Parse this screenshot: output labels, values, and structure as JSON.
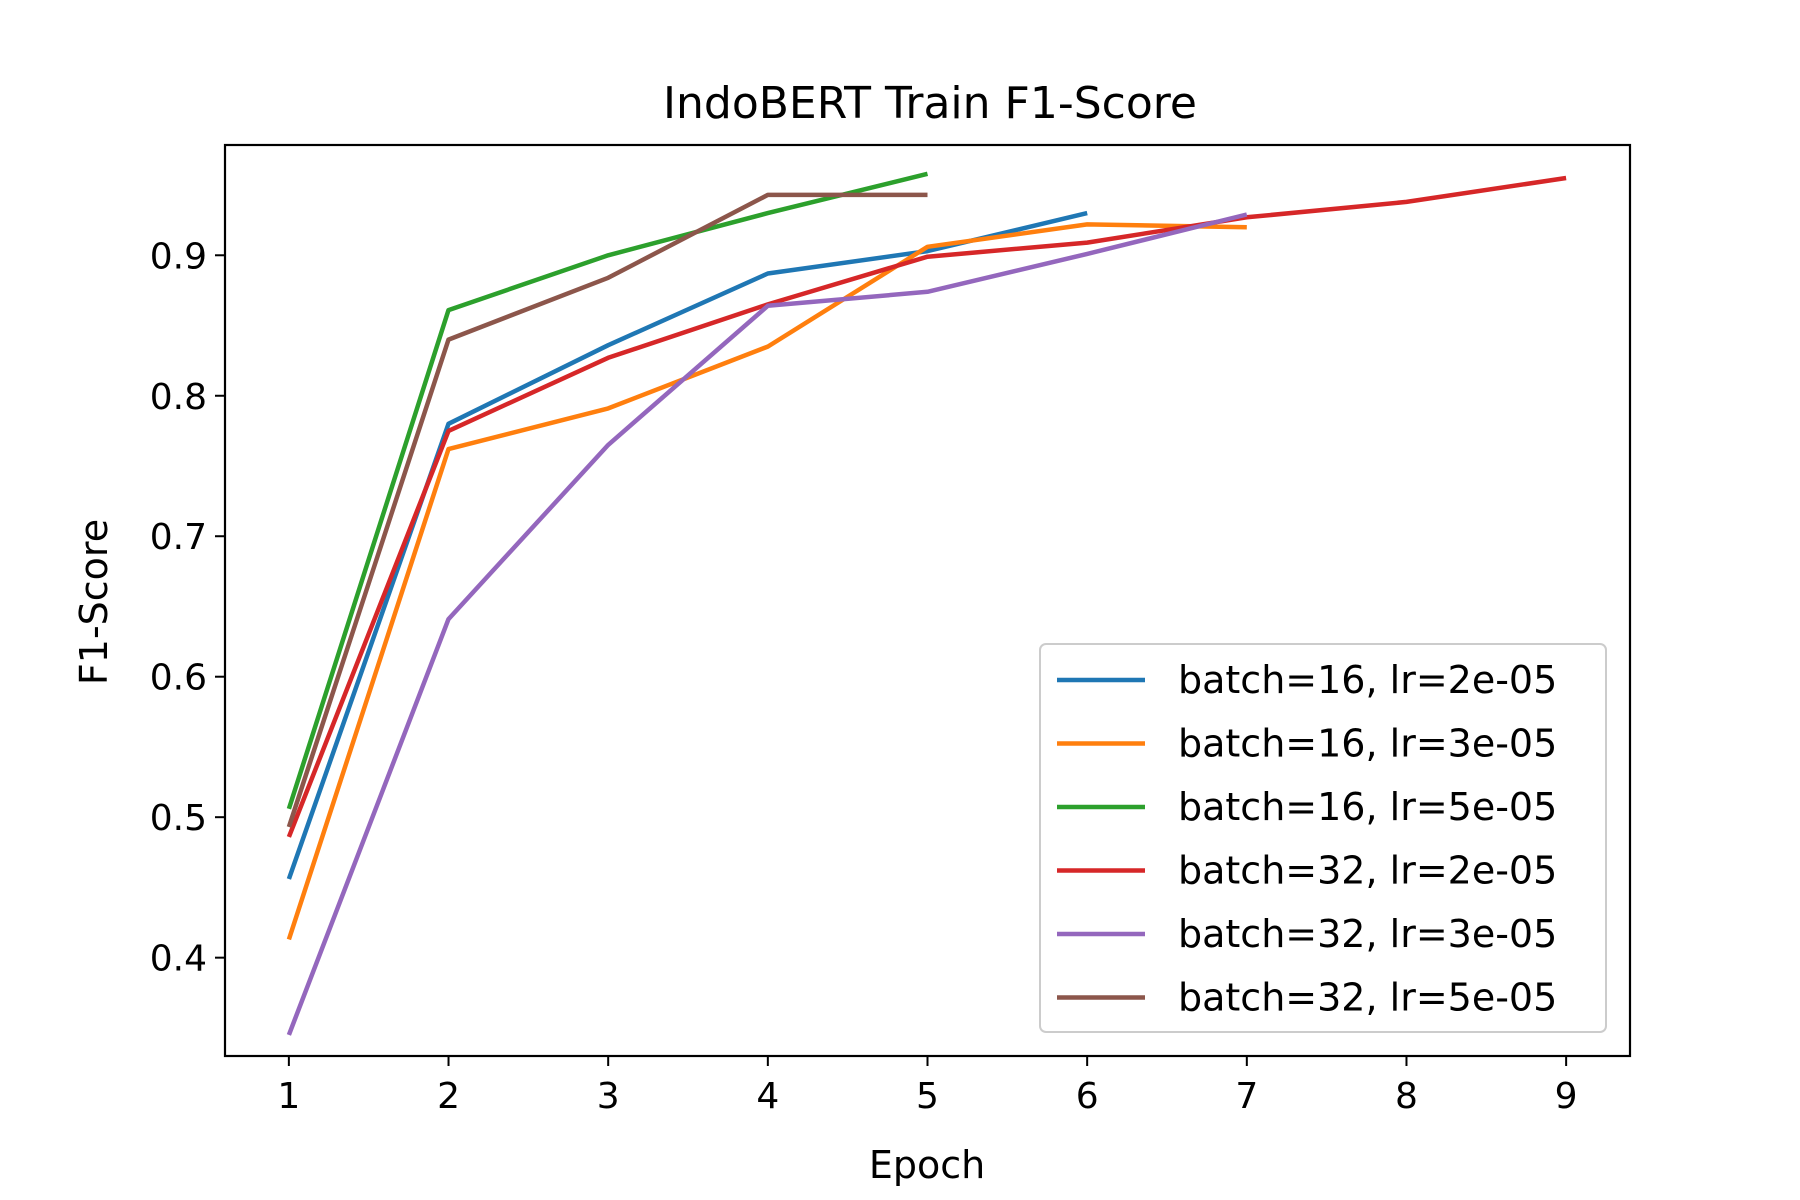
{
  "chart_data": {
    "type": "line",
    "title": "IndoBERT Train F1-Score",
    "xlabel": "Epoch",
    "ylabel": "F1-Score",
    "xlim": [
      0.6,
      9.4
    ],
    "ylim": [
      0.33,
      0.9785
    ],
    "xticks": [
      1,
      2,
      3,
      4,
      5,
      6,
      7,
      8,
      9
    ],
    "xtick_labels": [
      "1",
      "2",
      "3",
      "4",
      "5",
      "6",
      "7",
      "8",
      "9"
    ],
    "yticks": [
      0.4,
      0.5,
      0.6,
      0.7,
      0.8,
      0.9
    ],
    "ytick_labels": [
      "0.4",
      "0.5",
      "0.6",
      "0.7",
      "0.8",
      "0.9"
    ],
    "grid": false,
    "legend_position": "lower-right",
    "series": [
      {
        "name": "batch=16, lr=2e-05",
        "color": "#1f77b4",
        "x": [
          1,
          2,
          3,
          4,
          5,
          6
        ],
        "y": [
          0.456,
          0.78,
          0.836,
          0.887,
          0.903,
          0.93
        ]
      },
      {
        "name": "batch=16, lr=3e-05",
        "color": "#ff7f0e",
        "x": [
          1,
          2,
          3,
          4,
          5,
          6,
          7
        ],
        "y": [
          0.413,
          0.762,
          0.791,
          0.835,
          0.906,
          0.922,
          0.92
        ]
      },
      {
        "name": "batch=16, lr=5e-05",
        "color": "#2ca02c",
        "x": [
          1,
          2,
          3,
          4,
          5
        ],
        "y": [
          0.506,
          0.861,
          0.9,
          0.93,
          0.958
        ]
      },
      {
        "name": "batch=32, lr=2e-05",
        "color": "#d62728",
        "x": [
          1,
          2,
          3,
          4,
          5,
          6,
          7,
          8,
          9
        ],
        "y": [
          0.486,
          0.775,
          0.827,
          0.865,
          0.899,
          0.909,
          0.927,
          0.938,
          0.955
        ]
      },
      {
        "name": "batch=32, lr=3e-05",
        "color": "#9467bd",
        "x": [
          1,
          2,
          3,
          4,
          5,
          6,
          7
        ],
        "y": [
          0.345,
          0.641,
          0.765,
          0.864,
          0.874,
          0.901,
          0.929
        ]
      },
      {
        "name": "batch=32, lr=5e-05",
        "color": "#8c564b",
        "x": [
          1,
          2,
          3,
          4,
          5
        ],
        "y": [
          0.493,
          0.84,
          0.884,
          0.943,
          0.943
        ]
      }
    ]
  }
}
